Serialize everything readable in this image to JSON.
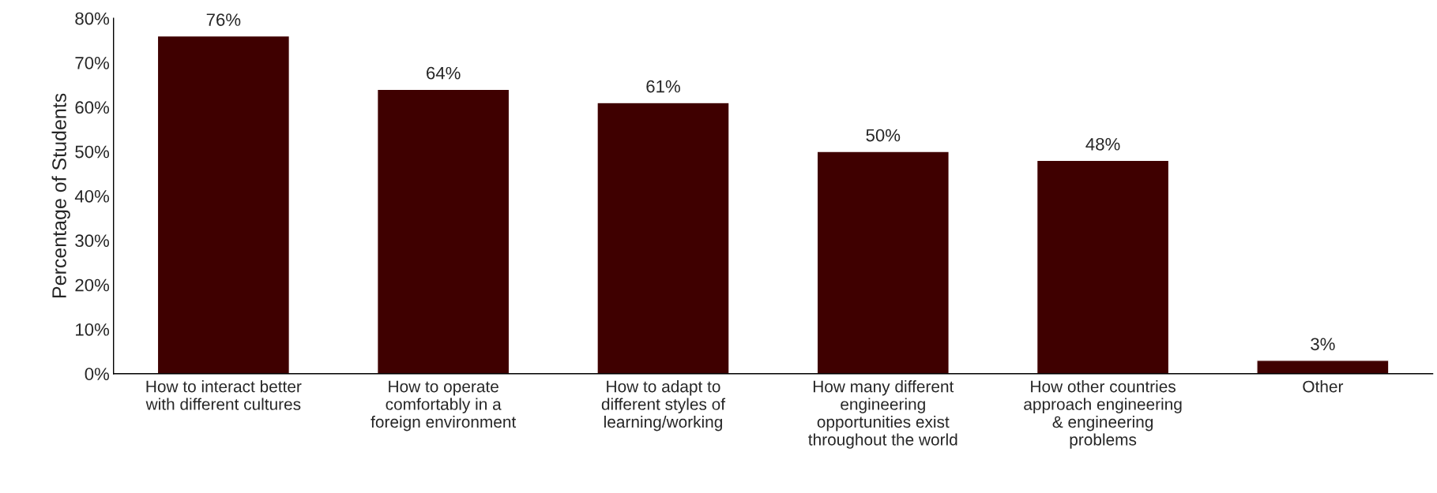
{
  "chart_data": {
    "type": "bar",
    "ylabel": "Percentage of Students",
    "categories": [
      "How to interact better\nwith different cultures",
      "How to operate\ncomfortably in a\nforeign environment",
      "How to adapt to\ndifferent styles of\nlearning/working",
      "How many different\nengineering\nopportunities exist\nthroughout the world",
      "How other countries\napproach engineering\n& engineering\nproblems",
      "Other"
    ],
    "values": [
      76,
      64,
      61,
      50,
      48,
      3
    ],
    "value_labels": [
      "76%",
      "64%",
      "61%",
      "50%",
      "48%",
      "3%"
    ],
    "color": "#3f0000",
    "ylim": [
      0,
      80
    ],
    "yticks": [
      {
        "value": 0,
        "label": "0%"
      },
      {
        "value": 10,
        "label": "10%"
      },
      {
        "value": 20,
        "label": "20%"
      },
      {
        "value": 30,
        "label": "30%"
      },
      {
        "value": 40,
        "label": "40%"
      },
      {
        "value": 50,
        "label": "50%"
      },
      {
        "value": 60,
        "label": "60%"
      },
      {
        "value": 70,
        "label": "70%"
      },
      {
        "value": 80,
        "label": "80%"
      }
    ],
    "grid": false,
    "legend": false
  }
}
